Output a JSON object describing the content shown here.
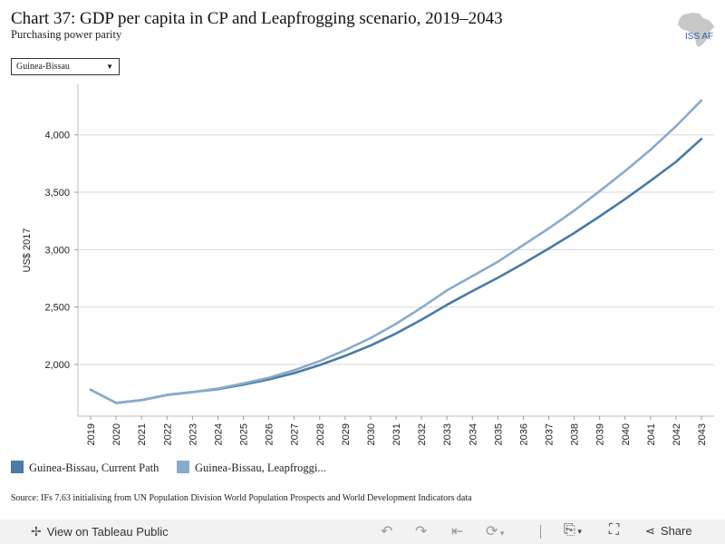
{
  "header": {
    "title": "Chart 37: GDP per capita in CP and Leapfrogging scenario, 2019–2043",
    "subtitle": "Purchasing power parity",
    "logo_text": "ISS AF"
  },
  "filter": {
    "selected": "Guinea-Bissau"
  },
  "legend": {
    "items": [
      {
        "label": "Guinea-Bissau, Current Path",
        "color": "#4a7aa6"
      },
      {
        "label": "Guinea-Bissau, Leapfroggi...",
        "color": "#88abcc"
      }
    ]
  },
  "source": "Source: IFs 7.63 initialising from UN Population Division World Population Prospects and World Development Indicators data",
  "footer": {
    "view_label": "View on Tableau Public",
    "share_label": "Share",
    "icons": [
      "tableau-icon",
      "undo-icon",
      "redo-icon",
      "revert-icon",
      "refresh-icon",
      "download-icon",
      "fullscreen-icon",
      "share-icon"
    ]
  },
  "chart_data": {
    "type": "line",
    "ylabel": "US$ 2017",
    "x": [
      2019,
      2020,
      2021,
      2022,
      2023,
      2024,
      2025,
      2026,
      2027,
      2028,
      2029,
      2030,
      2031,
      2032,
      2033,
      2034,
      2035,
      2036,
      2037,
      2038,
      2039,
      2040,
      2041,
      2042,
      2043
    ],
    "yticks": [
      2000,
      2500,
      3000,
      3500,
      4000
    ],
    "ylim": [
      1550,
      4440
    ],
    "grid": true,
    "legend_position": "bottom",
    "series": [
      {
        "name": "Guinea-Bissau, Current Path",
        "color": "#4a7aa6",
        "values": [
          1780,
          1665,
          1690,
          1735,
          1760,
          1785,
          1825,
          1870,
          1925,
          1995,
          2075,
          2165,
          2270,
          2390,
          2520,
          2640,
          2755,
          2880,
          3010,
          3145,
          3290,
          3440,
          3600,
          3765,
          3965
        ]
      },
      {
        "name": "Guinea-Bissau, Leapfroggi...",
        "color": "#88abcc",
        "values": [
          1780,
          1665,
          1690,
          1735,
          1760,
          1790,
          1835,
          1885,
          1950,
          2030,
          2125,
          2230,
          2355,
          2495,
          2645,
          2770,
          2895,
          3040,
          3185,
          3340,
          3510,
          3685,
          3870,
          4075,
          4300
        ]
      }
    ]
  }
}
